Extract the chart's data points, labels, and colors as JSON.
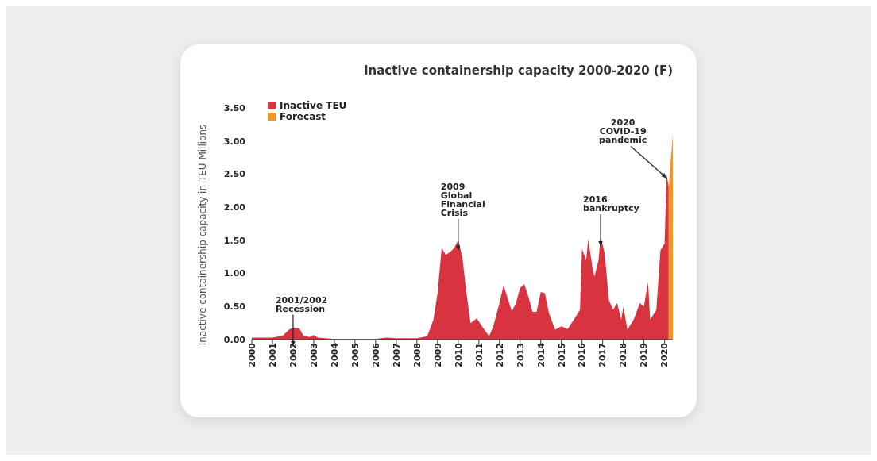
{
  "chart_data": {
    "type": "area",
    "title": "Inactive containership capacity 2000-2020 (F)",
    "ylabel": "Inactive containership capacity in TEU Millions",
    "xlim": [
      2000,
      2020.4
    ],
    "xticks": [
      2000,
      2001,
      2002,
      2003,
      2004,
      2005,
      2006,
      2007,
      2008,
      2009,
      2010,
      2011,
      2012,
      2013,
      2014,
      2015,
      2016,
      2017,
      2018,
      2019,
      2020
    ],
    "ylim": [
      0,
      3.5
    ],
    "yticks": [
      {
        "value": 0,
        "label": "0.00"
      },
      {
        "value": 0.5,
        "label": "0.50"
      },
      {
        "value": 1,
        "label": "1.00"
      },
      {
        "value": 1.5,
        "label": "1.50"
      },
      {
        "value": 2,
        "label": "2.00"
      },
      {
        "value": 2.5,
        "label": "2.50"
      },
      {
        "value": 3,
        "label": "3.00"
      },
      {
        "value": 3.5,
        "label": "3.50"
      }
    ],
    "legend": "top left",
    "series": [
      {
        "name": "Inactive TEU",
        "color": "#d9333f",
        "x": [
          2000,
          2001,
          2001.5,
          2001.8,
          2002,
          2002.3,
          2002.5,
          2002.8,
          2003,
          2003.2,
          2004,
          2005,
          2006,
          2006.5,
          2007,
          2008,
          2008.5,
          2008.8,
          2009,
          2009.2,
          2009.4,
          2009.6,
          2009.8,
          2010,
          2010.2,
          2010.4,
          2010.6,
          2010.9,
          2011.2,
          2011.5,
          2011.7,
          2012,
          2012.2,
          2012.4,
          2012.6,
          2012.8,
          2013,
          2013.2,
          2013.4,
          2013.6,
          2013.8,
          2014,
          2014.2,
          2014.4,
          2014.7,
          2015,
          2015.3,
          2015.6,
          2015.9,
          2016,
          2016.2,
          2016.3,
          2016.5,
          2016.6,
          2016.8,
          2016.9,
          2017.1,
          2017.3,
          2017.5,
          2017.7,
          2017.9,
          2018,
          2018.2,
          2018.5,
          2018.8,
          2019,
          2019.2,
          2019.3,
          2019.6,
          2019.8,
          2020,
          2020.1,
          2020.2
        ],
        "values": [
          0.03,
          0.03,
          0.06,
          0.15,
          0.18,
          0.17,
          0.06,
          0.04,
          0.07,
          0.03,
          0.01,
          0.01,
          0.01,
          0.03,
          0.02,
          0.02,
          0.05,
          0.3,
          0.7,
          1.38,
          1.28,
          1.32,
          1.38,
          1.5,
          1.25,
          0.7,
          0.25,
          0.32,
          0.18,
          0.05,
          0.2,
          0.55,
          0.82,
          0.62,
          0.43,
          0.55,
          0.78,
          0.84,
          0.65,
          0.42,
          0.42,
          0.72,
          0.7,
          0.4,
          0.15,
          0.2,
          0.16,
          0.3,
          0.45,
          1.37,
          1.2,
          1.52,
          1.1,
          0.95,
          1.2,
          1.56,
          1.3,
          0.6,
          0.45,
          0.55,
          0.3,
          0.5,
          0.15,
          0.3,
          0.55,
          0.5,
          0.87,
          0.3,
          0.45,
          1.35,
          1.45,
          2.5,
          2.3
        ]
      },
      {
        "name": "Forecast",
        "color": "#f7941d",
        "x": [
          2020.2,
          2020.4
        ],
        "values": [
          2.3,
          3.1
        ]
      }
    ],
    "annotations": [
      {
        "text": "2001/2002\nRecession",
        "x": 2002,
        "y": 0.18
      },
      {
        "text": "2009\nGlobal\nFinancial\nCrisis",
        "x": 2010,
        "y": 1.5
      },
      {
        "text": "2016\nbankruptcy",
        "x": 2016.9,
        "y": 1.56
      },
      {
        "text": "2020\nCOVID-19\npandemic",
        "x": 2020.1,
        "y": 2.5
      }
    ]
  }
}
